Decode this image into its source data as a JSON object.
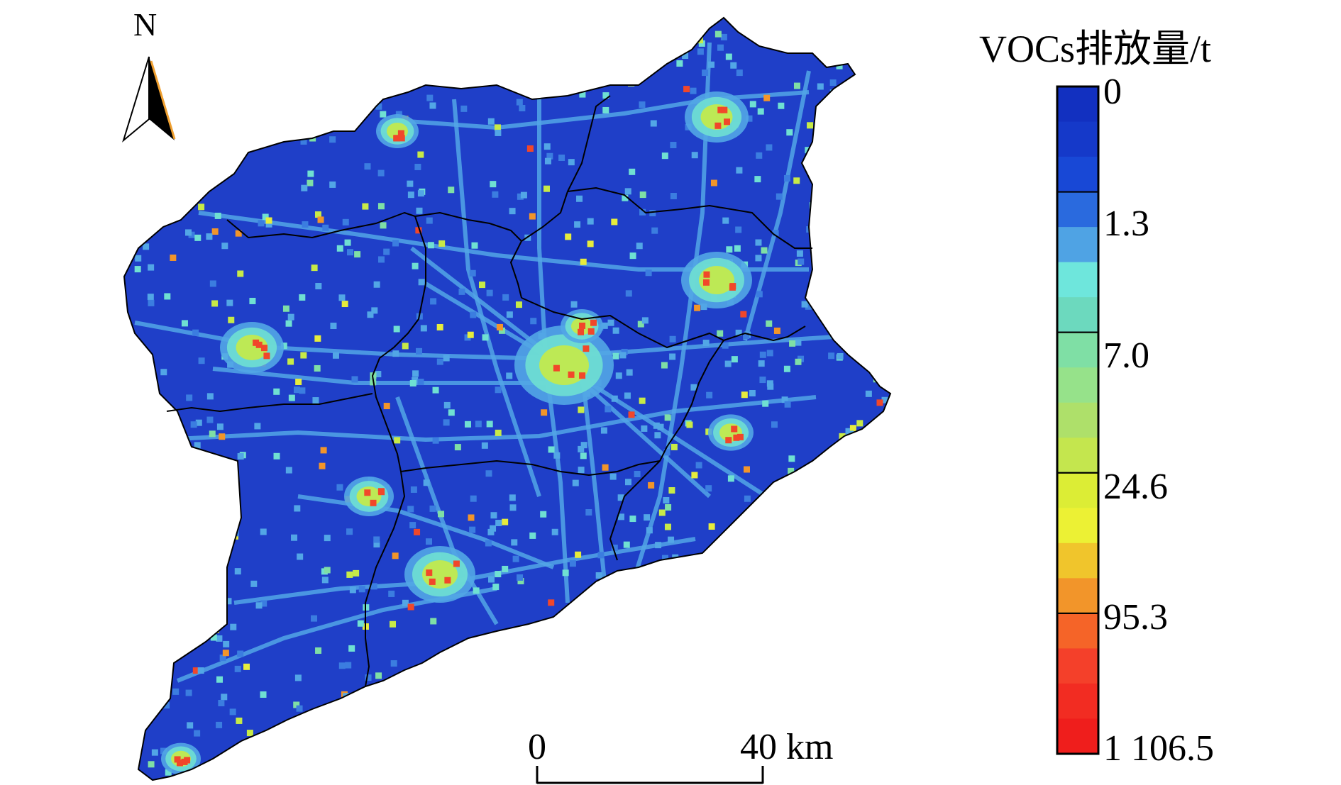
{
  "map": {
    "north_label": "N",
    "scale_bar": {
      "start_label": "0",
      "end_label": "40 km"
    },
    "colors": {
      "background": "#1f3fc8",
      "road": "#52a6e6",
      "hotspot_low": "#6fe0d2",
      "hotspot_mid": "#c7ea47",
      "hotspot_high": "#f1472a",
      "boundary": "#000000"
    }
  },
  "legend": {
    "title": "VOCs排放量/t",
    "breaks": [
      "0",
      "1.3",
      "7.0",
      "24.6",
      "95.3",
      "1 106.5"
    ],
    "colors": [
      "#1230c0",
      "#1539c9",
      "#1848d6",
      "#2a6ade",
      "#4fa3e4",
      "#6ee6dc",
      "#6cd9be",
      "#7fdfa5",
      "#96e28a",
      "#aee06a",
      "#c4e64e",
      "#dced35",
      "#ecf134",
      "#f0c52c",
      "#f2952a",
      "#f56428",
      "#f4402a",
      "#f22c22",
      "#ef1e1c"
    ]
  }
}
